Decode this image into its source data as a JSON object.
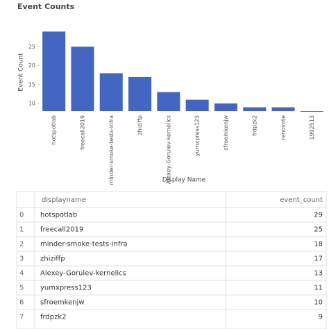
{
  "chart_data": {
    "type": "bar",
    "title": "Event Counts",
    "x_label": "Display Name",
    "y_label": "Event Count",
    "categories": [
      "hotspotlab",
      "freecall2019",
      "minder-smoke-tests-infra",
      "zhiziffp",
      "Alexey-Gorulev-kernelics",
      "yumxpress123",
      "sfroemkenjw",
      "frdpzk2",
      "renovate",
      "1992513"
    ],
    "values": [
      29,
      25,
      18,
      17,
      13,
      11,
      10,
      9,
      9,
      8
    ],
    "color": "#4466c2",
    "ylim": [
      8,
      30
    ],
    "yticks": [
      10,
      15,
      20,
      25
    ],
    "grid": false
  },
  "table": {
    "columns": [
      "displayname",
      "event_count"
    ],
    "rows": [
      [
        0,
        "hotspotlab",
        29
      ],
      [
        1,
        "freecall2019",
        25
      ],
      [
        2,
        "minder-smoke-tests-infra",
        18
      ],
      [
        3,
        "zhiziffp",
        17
      ],
      [
        4,
        "Alexey-Gorulev-kernelics",
        13
      ],
      [
        5,
        "yumxpress123",
        11
      ],
      [
        6,
        "sfroemkenjw",
        10
      ],
      [
        7,
        "frdpzk2",
        9
      ]
    ]
  }
}
